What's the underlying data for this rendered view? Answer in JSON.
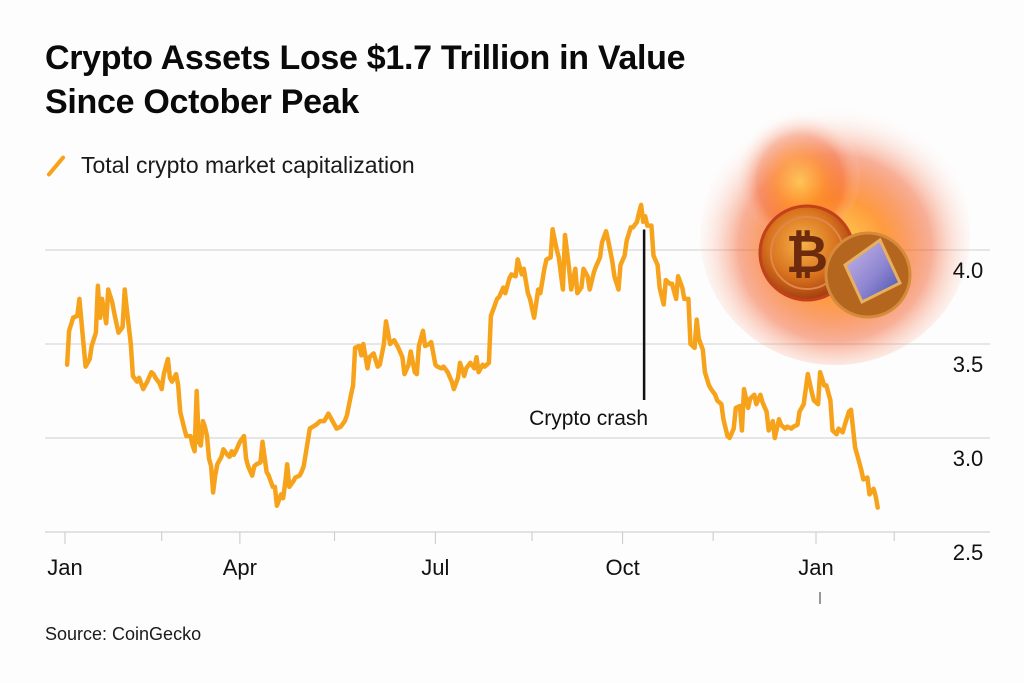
{
  "header": {
    "title_line1": "Crypto Assets Lose $1.7 Trillion in Value",
    "title_line2": "Since October Peak"
  },
  "legend": {
    "label": "Total crypto market capitalization",
    "color": "#f7a21b"
  },
  "footer": {
    "source": "Source: CoinGecko"
  },
  "illustration": {
    "description": "Burning Bitcoin and Ethereum coins",
    "icons": [
      "bitcoin-coin-icon",
      "ethereum-coin-icon",
      "fire-icon"
    ]
  },
  "chart_data": {
    "type": "line",
    "title": "Crypto Assets Lose $1.7 Trillion in Value Since October Peak",
    "xlabel": "",
    "ylabel": "",
    "unit": "Trillion USD",
    "ylim": [
      2.5,
      4.0
    ],
    "xlim_days": [
      0,
      410
    ],
    "grid": true,
    "legend_position": "top-left",
    "y_ticks": [
      {
        "value": 2.5,
        "label": "2.5"
      },
      {
        "value": 3.0,
        "label": "3.0"
      },
      {
        "value": 3.5,
        "label": "3.5"
      },
      {
        "value": 4.0,
        "label": "4.0"
      }
    ],
    "x_ticks": [
      {
        "day": 0,
        "label": "Jan",
        "major": true
      },
      {
        "day": 47,
        "label": "",
        "major": false
      },
      {
        "day": 85,
        "label": "Apr",
        "major": true
      },
      {
        "day": 131,
        "label": "",
        "major": false
      },
      {
        "day": 180,
        "label": "Jul",
        "major": true
      },
      {
        "day": 227,
        "label": "",
        "major": false
      },
      {
        "day": 271,
        "label": "Oct",
        "major": true
      },
      {
        "day": 315,
        "label": "",
        "major": false
      },
      {
        "day": 365,
        "label": "Jan",
        "major": true
      },
      {
        "day": 403,
        "label": "",
        "major": false
      }
    ],
    "annotation": {
      "day": 280,
      "value": 4.13,
      "label": "Crypto crash"
    },
    "series": [
      {
        "name": "Total crypto market capitalization",
        "color": "#f7a21b",
        "points": [
          [
            1,
            3.39
          ],
          [
            2,
            3.57
          ],
          [
            4,
            3.64
          ],
          [
            6,
            3.65
          ],
          [
            7,
            3.74
          ],
          [
            9,
            3.5
          ],
          [
            10,
            3.38
          ],
          [
            12,
            3.42
          ],
          [
            13,
            3.49
          ],
          [
            15,
            3.56
          ],
          [
            16,
            3.81
          ],
          [
            17,
            3.64
          ],
          [
            18,
            3.74
          ],
          [
            20,
            3.61
          ],
          [
            21,
            3.79
          ],
          [
            23,
            3.72
          ],
          [
            24,
            3.66
          ],
          [
            26,
            3.56
          ],
          [
            28,
            3.59
          ],
          [
            29,
            3.79
          ],
          [
            30,
            3.69
          ],
          [
            32,
            3.5
          ],
          [
            33,
            3.33
          ],
          [
            35,
            3.3
          ],
          [
            36,
            3.32
          ],
          [
            38,
            3.26
          ],
          [
            39,
            3.28
          ],
          [
            40,
            3.3
          ],
          [
            42,
            3.35
          ],
          [
            43,
            3.34
          ],
          [
            44,
            3.32
          ],
          [
            46,
            3.29
          ],
          [
            47,
            3.26
          ],
          [
            48,
            3.34
          ],
          [
            50,
            3.42
          ],
          [
            51,
            3.32
          ],
          [
            52,
            3.3
          ],
          [
            54,
            3.34
          ],
          [
            55,
            3.28
          ],
          [
            56,
            3.14
          ],
          [
            58,
            3.05
          ],
          [
            59,
            3.01
          ],
          [
            61,
            3.01
          ],
          [
            62,
            2.96
          ],
          [
            63,
            2.93
          ],
          [
            64,
            3.25
          ],
          [
            65,
            2.98
          ],
          [
            66,
            2.96
          ],
          [
            67,
            3.09
          ],
          [
            68,
            3.06
          ],
          [
            69,
            3.01
          ],
          [
            70,
            2.89
          ],
          [
            71,
            2.85
          ],
          [
            72,
            2.71
          ],
          [
            73,
            2.8
          ],
          [
            74,
            2.86
          ],
          [
            76,
            2.9
          ],
          [
            77,
            2.94
          ],
          [
            79,
            2.91
          ],
          [
            80,
            2.9
          ],
          [
            81,
            2.93
          ],
          [
            82,
            2.91
          ],
          [
            83,
            2.93
          ],
          [
            85,
            2.98
          ],
          [
            87,
            3.01
          ],
          [
            88,
            2.89
          ],
          [
            89,
            2.85
          ],
          [
            91,
            2.8
          ],
          [
            92,
            2.85
          ],
          [
            93,
            2.86
          ],
          [
            95,
            2.87
          ],
          [
            96,
            2.98
          ],
          [
            98,
            2.82
          ],
          [
            99,
            2.8
          ],
          [
            101,
            2.74
          ],
          [
            102,
            2.74
          ],
          [
            103,
            2.64
          ],
          [
            105,
            2.7
          ],
          [
            106,
            2.68
          ],
          [
            107,
            2.76
          ],
          [
            108,
            2.86
          ],
          [
            109,
            2.74
          ],
          [
            111,
            2.77
          ],
          [
            112,
            2.79
          ],
          [
            114,
            2.8
          ],
          [
            115,
            2.82
          ],
          [
            116,
            2.85
          ],
          [
            119,
            3.05
          ],
          [
            122,
            3.07
          ],
          [
            124,
            3.09
          ],
          [
            126,
            3.09
          ],
          [
            128,
            3.13
          ],
          [
            130,
            3.09
          ],
          [
            132,
            3.05
          ],
          [
            134,
            3.06
          ],
          [
            136,
            3.09
          ],
          [
            137,
            3.12
          ],
          [
            139,
            3.23
          ],
          [
            140,
            3.28
          ],
          [
            141,
            3.48
          ],
          [
            143,
            3.49
          ],
          [
            144,
            3.44
          ],
          [
            145,
            3.5
          ],
          [
            147,
            3.37
          ],
          [
            148,
            3.43
          ],
          [
            150,
            3.45
          ],
          [
            152,
            3.38
          ],
          [
            153,
            3.39
          ],
          [
            155,
            3.5
          ],
          [
            156,
            3.62
          ],
          [
            158,
            3.5
          ],
          [
            159,
            3.51
          ],
          [
            160,
            3.52
          ],
          [
            162,
            3.48
          ],
          [
            164,
            3.43
          ],
          [
            165,
            3.34
          ],
          [
            167,
            3.39
          ],
          [
            168,
            3.46
          ],
          [
            170,
            3.35
          ],
          [
            171,
            3.34
          ],
          [
            172,
            3.49
          ],
          [
            174,
            3.57
          ],
          [
            175,
            3.49
          ],
          [
            177,
            3.5
          ],
          [
            178,
            3.51
          ],
          [
            180,
            3.39
          ],
          [
            181,
            3.38
          ],
          [
            183,
            3.37
          ],
          [
            184,
            3.38
          ],
          [
            186,
            3.35
          ],
          [
            188,
            3.3
          ],
          [
            189,
            3.26
          ],
          [
            191,
            3.32
          ],
          [
            192,
            3.4
          ],
          [
            194,
            3.33
          ],
          [
            195,
            3.37
          ],
          [
            197,
            3.4
          ],
          [
            199,
            3.37
          ],
          [
            200,
            3.43
          ],
          [
            201,
            3.35
          ],
          [
            203,
            3.39
          ],
          [
            204,
            3.38
          ],
          [
            206,
            3.4
          ],
          [
            207,
            3.65
          ],
          [
            208,
            3.68
          ],
          [
            210,
            3.74
          ],
          [
            211,
            3.75
          ],
          [
            213,
            3.8
          ],
          [
            214,
            3.77
          ],
          [
            216,
            3.85
          ],
          [
            217,
            3.87
          ],
          [
            219,
            3.86
          ],
          [
            220,
            3.95
          ],
          [
            222,
            3.87
          ],
          [
            223,
            3.9
          ],
          [
            225,
            3.77
          ],
          [
            226,
            3.74
          ],
          [
            228,
            3.64
          ],
          [
            230,
            3.79
          ],
          [
            231,
            3.77
          ],
          [
            233,
            3.9
          ],
          [
            234,
            3.95
          ],
          [
            236,
            3.96
          ],
          [
            237,
            4.11
          ],
          [
            239,
            4.0
          ],
          [
            240,
            3.96
          ],
          [
            242,
            3.79
          ],
          [
            243,
            4.08
          ],
          [
            245,
            3.9
          ],
          [
            246,
            3.79
          ],
          [
            248,
            3.9
          ],
          [
            249,
            3.77
          ],
          [
            251,
            3.8
          ],
          [
            252,
            3.9
          ],
          [
            254,
            3.86
          ],
          [
            255,
            3.79
          ],
          [
            257,
            3.88
          ],
          [
            258,
            3.91
          ],
          [
            260,
            3.96
          ],
          [
            261,
            4.04
          ],
          [
            263,
            4.1
          ],
          [
            264,
            4.05
          ],
          [
            266,
            3.94
          ],
          [
            267,
            3.86
          ],
          [
            269,
            3.79
          ],
          [
            270,
            3.92
          ],
          [
            272,
            3.97
          ],
          [
            273,
            4.05
          ],
          [
            275,
            4.12
          ],
          [
            276,
            4.12
          ],
          [
            278,
            4.15
          ],
          [
            279,
            4.2
          ],
          [
            280,
            4.24
          ],
          [
            281,
            4.15
          ],
          [
            282,
            4.18
          ],
          [
            283,
            4.13
          ],
          [
            285,
            4.13
          ],
          [
            286,
            3.97
          ],
          [
            288,
            3.92
          ],
          [
            289,
            3.8
          ],
          [
            291,
            3.71
          ],
          [
            292,
            3.84
          ],
          [
            294,
            3.82
          ],
          [
            295,
            3.82
          ],
          [
            297,
            3.74
          ],
          [
            298,
            3.86
          ],
          [
            300,
            3.8
          ],
          [
            301,
            3.74
          ],
          [
            303,
            3.74
          ],
          [
            304,
            3.5
          ],
          [
            306,
            3.48
          ],
          [
            307,
            3.63
          ],
          [
            308,
            3.53
          ],
          [
            310,
            3.47
          ],
          [
            311,
            3.35
          ],
          [
            313,
            3.28
          ],
          [
            314,
            3.26
          ],
          [
            316,
            3.23
          ],
          [
            317,
            3.2
          ],
          [
            319,
            3.18
          ],
          [
            320,
            3.1
          ],
          [
            322,
            3.01
          ],
          [
            323,
            3.0
          ],
          [
            325,
            3.05
          ],
          [
            326,
            3.16
          ],
          [
            328,
            3.17
          ],
          [
            329,
            3.04
          ],
          [
            330,
            3.26
          ],
          [
            332,
            3.16
          ],
          [
            333,
            3.21
          ],
          [
            335,
            3.23
          ],
          [
            336,
            3.18
          ],
          [
            338,
            3.23
          ],
          [
            339,
            3.19
          ],
          [
            341,
            3.14
          ],
          [
            342,
            3.04
          ],
          [
            344,
            3.09
          ],
          [
            345,
            3.0
          ],
          [
            347,
            3.1
          ],
          [
            348,
            3.07
          ],
          [
            350,
            3.05
          ],
          [
            351,
            3.06
          ],
          [
            353,
            3.05
          ],
          [
            354,
            3.06
          ],
          [
            356,
            3.07
          ],
          [
            357,
            3.14
          ],
          [
            359,
            3.18
          ],
          [
            361,
            3.34
          ],
          [
            363,
            3.24
          ],
          [
            364,
            3.2
          ],
          [
            366,
            3.18
          ],
          [
            367,
            3.35
          ],
          [
            369,
            3.28
          ],
          [
            370,
            3.28
          ],
          [
            372,
            3.2
          ],
          [
            373,
            3.04
          ],
          [
            375,
            3.02
          ],
          [
            376,
            3.05
          ],
          [
            378,
            3.03
          ],
          [
            379,
            3.07
          ],
          [
            381,
            3.14
          ],
          [
            382,
            3.15
          ],
          [
            384,
            2.95
          ],
          [
            385,
            2.91
          ],
          [
            387,
            2.83
          ],
          [
            388,
            2.78
          ],
          [
            390,
            2.79
          ],
          [
            391,
            2.7
          ],
          [
            393,
            2.73
          ],
          [
            394,
            2.69
          ],
          [
            395,
            2.63
          ]
        ]
      }
    ]
  }
}
